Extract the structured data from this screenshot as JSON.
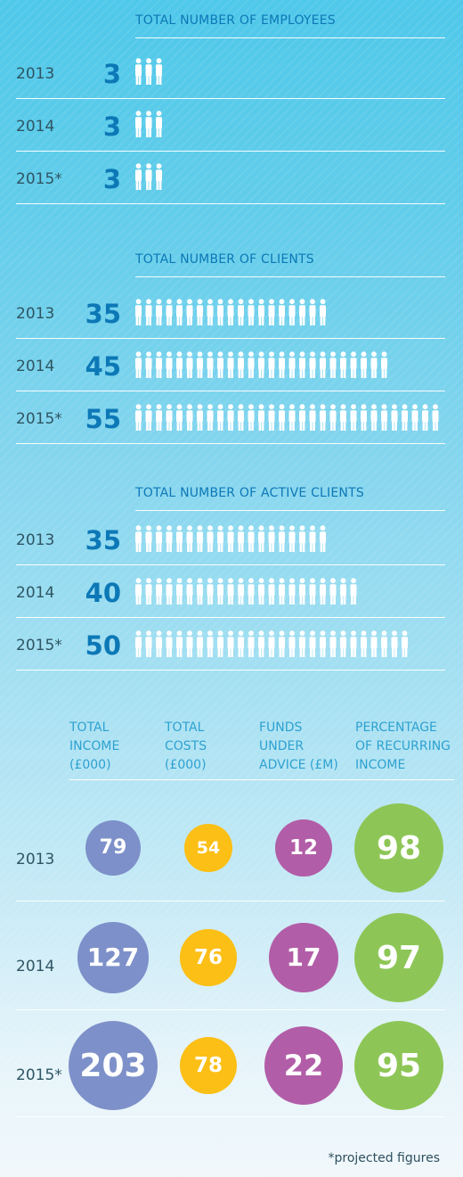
{
  "sections": [
    {
      "title": "TOTAL NUMBER OF EMPLOYEES",
      "rows": [
        {
          "year": "2013",
          "value": "3",
          "count": 3
        },
        {
          "year": "2014",
          "value": "3",
          "count": 3
        },
        {
          "year": "2015*",
          "value": "3",
          "count": 3
        }
      ]
    },
    {
      "title": "TOTAL NUMBER OF CLIENTS",
      "rows": [
        {
          "year": "2013",
          "value": "35",
          "count": 35
        },
        {
          "year": "2014",
          "value": "45",
          "count": 45
        },
        {
          "year": "2015*",
          "value": "55",
          "count": 55
        }
      ]
    },
    {
      "title": "TOTAL NUMBER OF ACTIVE CLIENTS",
      "rows": [
        {
          "year": "2013",
          "value": "35",
          "count": 35
        },
        {
          "year": "2014",
          "value": "40",
          "count": 40
        },
        {
          "year": "2015*",
          "value": "50",
          "count": 50
        }
      ]
    }
  ],
  "metrics": {
    "headers": [
      {
        "line1": "TOTAL",
        "line2": "INCOME",
        "line3": "(£000)"
      },
      {
        "line1": "TOTAL",
        "line2": "COSTS",
        "line3": "(£000)"
      },
      {
        "line1": "FUNDS",
        "line2": "UNDER",
        "line3": "ADVICE (£M)"
      },
      {
        "line1": "PERCENTAGE",
        "line2": "OF RECURRING",
        "line3": "INCOME"
      }
    ],
    "rows": [
      {
        "year": "2013",
        "values": [
          "79",
          "54",
          "12",
          "98"
        ]
      },
      {
        "year": "2014",
        "values": [
          "127",
          "76",
          "17",
          "97"
        ]
      },
      {
        "year": "2015*",
        "values": [
          "203",
          "78",
          "22",
          "95"
        ]
      }
    ],
    "colors": [
      "#7d90c9",
      "#fbbf16",
      "#b25da7",
      "#8dc656"
    ]
  },
  "footnote": "*projected figures",
  "chart_data": [
    {
      "type": "pictogram",
      "title": "TOTAL NUMBER OF EMPLOYEES",
      "categories": [
        "2013",
        "2014",
        "2015*"
      ],
      "values": [
        3,
        3,
        3
      ]
    },
    {
      "type": "pictogram",
      "title": "TOTAL NUMBER OF CLIENTS",
      "categories": [
        "2013",
        "2014",
        "2015*"
      ],
      "values": [
        35,
        45,
        55
      ]
    },
    {
      "type": "pictogram",
      "title": "TOTAL NUMBER OF ACTIVE CLIENTS",
      "categories": [
        "2013",
        "2014",
        "2015*"
      ],
      "values": [
        35,
        40,
        50
      ]
    },
    {
      "type": "bubble",
      "categories": [
        "2013",
        "2014",
        "2015*"
      ],
      "series": [
        {
          "name": "TOTAL INCOME (£000)",
          "values": [
            79,
            127,
            203
          ]
        },
        {
          "name": "TOTAL COSTS (£000)",
          "values": [
            54,
            76,
            78
          ]
        },
        {
          "name": "FUNDS UNDER ADVICE (£M)",
          "values": [
            12,
            17,
            22
          ]
        },
        {
          "name": "PERCENTAGE OF RECURRING INCOME",
          "values": [
            98,
            97,
            95
          ]
        }
      ]
    }
  ]
}
